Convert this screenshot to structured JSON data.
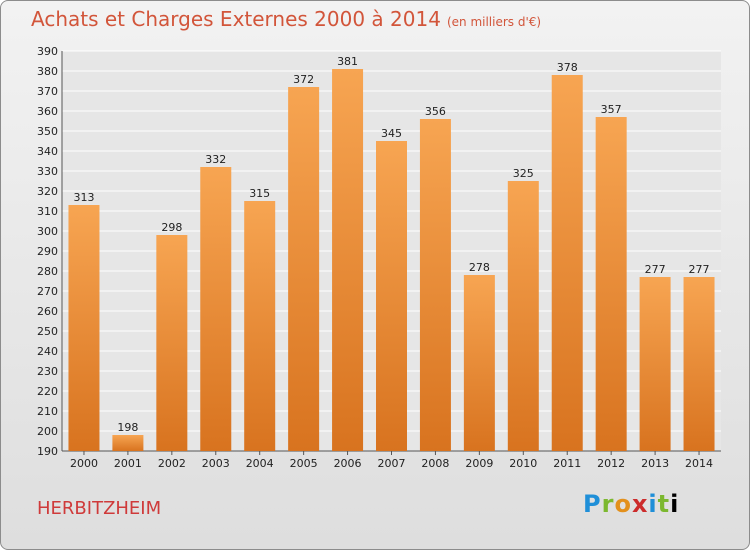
{
  "title": "Achats et Charges Externes 2000 à 2014",
  "unit": "(en milliers d'€)",
  "commune": "HERBITZHEIM",
  "logo_text": "Proxiti",
  "colors": {
    "bar_light": "#f7a552",
    "bar_dark": "#d8731f",
    "title": "#d2553a"
  },
  "chart_data": {
    "type": "bar",
    "title": "Achats et Charges Externes 2000 à 2014",
    "subtitle": "(en milliers d'€)",
    "categories": [
      "2000",
      "2001",
      "2002",
      "2003",
      "2004",
      "2005",
      "2006",
      "2007",
      "2008",
      "2009",
      "2010",
      "2011",
      "2012",
      "2013",
      "2014"
    ],
    "values": [
      313,
      198,
      298,
      332,
      315,
      372,
      381,
      345,
      356,
      278,
      325,
      378,
      357,
      277,
      277
    ],
    "ylim": [
      190,
      390
    ],
    "ytick_step": 10,
    "grid": true,
    "legend": "none"
  }
}
